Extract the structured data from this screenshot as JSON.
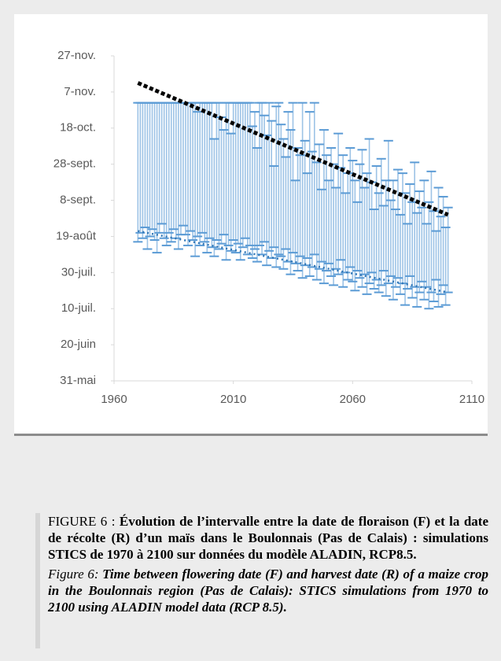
{
  "chart_data": {
    "type": "range",
    "xlim": [
      1960,
      2110
    ],
    "xticks": [
      1960,
      2010,
      2060,
      2110
    ],
    "ylim": [
      151,
      331
    ],
    "yticks": [
      {
        "value": 151,
        "label": "31-mai"
      },
      {
        "value": 171,
        "label": "20-juin"
      },
      {
        "value": 191,
        "label": "10-juil."
      },
      {
        "value": 211,
        "label": "30-juil."
      },
      {
        "value": 231,
        "label": "19-août"
      },
      {
        "value": 251,
        "label": "8-sept."
      },
      {
        "value": 271,
        "label": "28-sept."
      },
      {
        "value": 291,
        "label": "18-oct."
      },
      {
        "value": 311,
        "label": "7-nov."
      },
      {
        "value": 331,
        "label": "27-nov."
      }
    ],
    "color": "#9dc3e6",
    "cap_color": "#5b9bd5",
    "x": [
      1970,
      1971,
      1972,
      1973,
      1974,
      1975,
      1976,
      1977,
      1978,
      1979,
      1980,
      1981,
      1982,
      1983,
      1984,
      1985,
      1986,
      1987,
      1988,
      1989,
      1990,
      1991,
      1992,
      1993,
      1994,
      1995,
      1996,
      1997,
      1998,
      1999,
      2000,
      2001,
      2002,
      2003,
      2004,
      2005,
      2006,
      2007,
      2008,
      2009,
      2010,
      2011,
      2012,
      2013,
      2014,
      2015,
      2016,
      2017,
      2018,
      2019,
      2020,
      2021,
      2022,
      2023,
      2024,
      2025,
      2026,
      2027,
      2028,
      2029,
      2030,
      2031,
      2032,
      2033,
      2034,
      2035,
      2036,
      2037,
      2038,
      2039,
      2040,
      2041,
      2042,
      2043,
      2044,
      2045,
      2046,
      2047,
      2048,
      2049,
      2050,
      2051,
      2052,
      2053,
      2054,
      2055,
      2056,
      2057,
      2058,
      2059,
      2060,
      2061,
      2062,
      2063,
      2064,
      2065,
      2066,
      2067,
      2068,
      2069,
      2070,
      2071,
      2072,
      2073,
      2074,
      2075,
      2076,
      2077,
      2078,
      2079,
      2080,
      2081,
      2082,
      2083,
      2084,
      2085,
      2086,
      2087,
      2088,
      2089,
      2090,
      2091,
      2092,
      2093,
      2094,
      2095,
      2096,
      2097,
      2098,
      2099,
      2100
    ],
    "low": [
      228,
      233,
      230,
      236,
      224,
      231,
      235,
      229,
      222,
      233,
      238,
      230,
      226,
      233,
      228,
      235,
      230,
      224,
      232,
      237,
      232,
      226,
      234,
      229,
      220,
      231,
      226,
      233,
      228,
      222,
      230,
      225,
      220,
      229,
      224,
      227,
      232,
      218,
      226,
      223,
      229,
      222,
      227,
      218,
      225,
      230,
      221,
      226,
      219,
      224,
      217,
      226,
      221,
      228,
      215,
      223,
      219,
      225,
      214,
      221,
      220,
      213,
      224,
      217,
      210,
      222,
      216,
      212,
      220,
      208,
      215,
      219,
      209,
      214,
      221,
      207,
      213,
      217,
      205,
      212,
      216,
      209,
      204,
      213,
      210,
      218,
      203,
      211,
      207,
      214,
      206,
      201,
      212,
      208,
      203,
      210,
      199,
      205,
      211,
      202,
      207,
      200,
      204,
      212,
      198,
      205,
      209,
      196,
      203,
      208,
      199,
      205,
      193,
      202,
      209,
      197,
      203,
      192,
      200,
      206,
      196,
      203,
      191,
      200,
      195,
      207,
      192,
      199,
      204,
      193,
      200
    ],
    "high": [
      305,
      305,
      305,
      305,
      305,
      305,
      305,
      305,
      305,
      305,
      305,
      305,
      305,
      305,
      305,
      305,
      305,
      305,
      305,
      305,
      305,
      305,
      305,
      305,
      305,
      300,
      305,
      305,
      305,
      305,
      305,
      305,
      285,
      305,
      305,
      297,
      290,
      305,
      305,
      288,
      305,
      305,
      305,
      305,
      305,
      305,
      305,
      305,
      292,
      300,
      280,
      305,
      305,
      298,
      287,
      305,
      295,
      270,
      303,
      305,
      293,
      285,
      275,
      300,
      290,
      305,
      262,
      280,
      276,
      305,
      284,
      266,
      300,
      278,
      305,
      272,
      282,
      257,
      290,
      276,
      262,
      280,
      271,
      258,
      288,
      269,
      276,
      255,
      266,
      280,
      273,
      262,
      250,
      271,
      279,
      258,
      266,
      285,
      261,
      246,
      270,
      255,
      274,
      248,
      262,
      284,
      251,
      262,
      246,
      268,
      243,
      266,
      255,
      238,
      260,
      250,
      272,
      244,
      256,
      247,
      262,
      238,
      250,
      267,
      245,
      234,
      258,
      242,
      253,
      236,
      247
    ],
    "trends": [
      {
        "x": [
          1970,
          2100
        ],
        "values": [
          316,
          243
        ],
        "color": "#000000"
      },
      {
        "x": [
          1970,
          2100
        ],
        "values": [
          234,
          200
        ],
        "color": "#2e75b6"
      }
    ]
  },
  "caption": {
    "fr_label": "FIGURE 6 : ",
    "fr_text": "Évolution de l’intervalle entre la date de floraison (F) et la date de récolte (R) d’un maïs dans le Boulonnais (Pas de Calais) : simulations STICS de 1970 à 2100 sur données du modèle ALADIN, RCP8.5.",
    "en_label": "Figure 6: ",
    "en_text": "Time between flowering date (F) and harvest date (R) of a maize crop in the Boulonnais region (Pas de Calais): STICS simulations from 1970 to 2100 using ALADIN model data (RCP 8.5)."
  }
}
